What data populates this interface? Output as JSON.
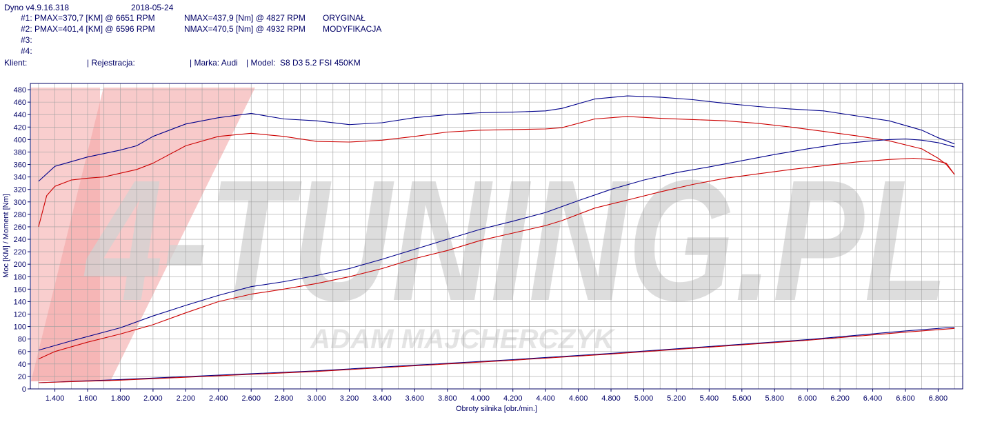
{
  "header": {
    "app": "Dyno v4.9.16.318",
    "date": "2018-05-24",
    "runs": [
      {
        "id": "#1:",
        "pmax": "PMAX=370,7 [KM] @ 6651 RPM",
        "nmax": "NMAX=437,9 [Nm] @ 4827 RPM",
        "label": "ORYGINAŁ"
      },
      {
        "id": "#2:",
        "pmax": "PMAX=401,4 [KM] @ 6596 RPM",
        "nmax": "NMAX=470,5 [Nm] @ 4932 RPM",
        "label": "MODYFIKACJA"
      },
      {
        "id": "#3:",
        "pmax": "",
        "nmax": "",
        "label": ""
      },
      {
        "id": "#4:",
        "pmax": "",
        "nmax": "",
        "label": ""
      }
    ],
    "client_label": "Klient:",
    "registration_label": "| Rejestracja:",
    "make_label": "| Marka: Audi",
    "model_label": "| Model:",
    "model_value": "S8 D3 5.2 FSI 450KM"
  },
  "watermark": {
    "brand": "4-TUNING.PL",
    "sub": "ADAM MAJCHERCZYK",
    "colors": {
      "brand": "#cfcfcf",
      "accent": "#f4a6a6"
    }
  },
  "chart_data": {
    "type": "line",
    "xlabel": "Obroty silnika [obr./min.]",
    "ylabel": "Moc [KM] / Moment [Nm]",
    "xlim": [
      1250,
      6950
    ],
    "ylim": [
      0,
      490
    ],
    "x_ticks": [
      1400,
      1600,
      1800,
      2000,
      2200,
      2400,
      2600,
      2800,
      3000,
      3200,
      3400,
      3600,
      3800,
      4000,
      4200,
      4400,
      4600,
      4800,
      5000,
      5200,
      5400,
      5600,
      5800,
      6000,
      6200,
      6400,
      6600,
      6800
    ],
    "x_tick_labels": [
      "1.400",
      "1.600",
      "1.800",
      "2.000",
      "2.200",
      "2.400",
      "2.600",
      "2.800",
      "3.000",
      "3.200",
      "3.400",
      "3.600",
      "3.800",
      "4.000",
      "4.200",
      "4.400",
      "4.600",
      "4.800",
      "5.000",
      "5.200",
      "5.400",
      "5.600",
      "5.800",
      "6.000",
      "6.200",
      "6.400",
      "6.600",
      "6.800"
    ],
    "y_ticks": [
      0,
      20,
      40,
      60,
      80,
      100,
      120,
      140,
      160,
      180,
      200,
      220,
      240,
      260,
      280,
      300,
      320,
      340,
      360,
      380,
      400,
      420,
      440,
      460,
      480
    ],
    "grid": true,
    "colors": {
      "grid": "#a0a0a0",
      "run1": "#cc0000",
      "run2": "#00008b",
      "axis": "#000066"
    },
    "series": [
      {
        "run": "#2",
        "quantity": "torque",
        "color": "#00008b",
        "x": [
          1300,
          1400,
          1600,
          1800,
          1900,
          2000,
          2200,
          2400,
          2600,
          2800,
          3000,
          3200,
          3400,
          3600,
          3800,
          4000,
          4200,
          4400,
          4500,
          4700,
          4900,
          5100,
          5300,
          5500,
          5700,
          5900,
          6100,
          6300,
          6500,
          6700,
          6800,
          6900
        ],
        "y": [
          333,
          357,
          372,
          383,
          390,
          405,
          425,
          435,
          442,
          433,
          430,
          424,
          427,
          435,
          440,
          443,
          444,
          446,
          450,
          465,
          470,
          468,
          464,
          458,
          453,
          449,
          446,
          438,
          430,
          415,
          403,
          393
        ]
      },
      {
        "run": "#1",
        "quantity": "torque",
        "color": "#cc0000",
        "x": [
          1300,
          1350,
          1400,
          1500,
          1600,
          1700,
          1800,
          1900,
          2000,
          2200,
          2400,
          2600,
          2800,
          3000,
          3200,
          3400,
          3600,
          3800,
          4000,
          4200,
          4400,
          4500,
          4700,
          4900,
          5100,
          5300,
          5500,
          5700,
          5900,
          6100,
          6300,
          6500,
          6700,
          6800,
          6850,
          6900
        ],
        "y": [
          260,
          310,
          325,
          335,
          338,
          340,
          346,
          352,
          362,
          390,
          405,
          410,
          405,
          397,
          396,
          399,
          405,
          412,
          415,
          416,
          417,
          419,
          433,
          437,
          434,
          432,
          430,
          426,
          420,
          413,
          406,
          398,
          385,
          370,
          360,
          344
        ]
      },
      {
        "run": "#2",
        "quantity": "power",
        "color": "#00008b",
        "x": [
          1300,
          1500,
          1800,
          2000,
          2200,
          2400,
          2600,
          2800,
          3000,
          3200,
          3400,
          3600,
          3800,
          4000,
          4200,
          4400,
          4600,
          4800,
          5000,
          5200,
          5400,
          5600,
          5800,
          6000,
          6200,
          6400,
          6500,
          6600,
          6700,
          6800,
          6900
        ],
        "y": [
          62,
          77,
          98,
          117,
          134,
          150,
          164,
          172,
          182,
          193,
          208,
          224,
          240,
          256,
          269,
          283,
          302,
          320,
          335,
          347,
          356,
          366,
          376,
          385,
          393,
          398,
          400,
          401,
          399,
          395,
          388
        ]
      },
      {
        "run": "#1",
        "quantity": "power",
        "color": "#cc0000",
        "x": [
          1300,
          1400,
          1600,
          1800,
          2000,
          2200,
          2400,
          2600,
          2800,
          3000,
          3200,
          3400,
          3600,
          3800,
          4000,
          4200,
          4400,
          4500,
          4700,
          4900,
          5100,
          5300,
          5500,
          5700,
          5900,
          6100,
          6300,
          6500,
          6650,
          6750,
          6850,
          6900
        ],
        "y": [
          48,
          60,
          75,
          88,
          103,
          122,
          140,
          152,
          160,
          169,
          180,
          193,
          209,
          222,
          238,
          250,
          262,
          270,
          290,
          303,
          316,
          328,
          338,
          345,
          352,
          358,
          364,
          368,
          370,
          368,
          362,
          344
        ]
      },
      {
        "run": "#2",
        "quantity": "losses",
        "color": "#00008b",
        "x": [
          1300,
          1800,
          2400,
          3000,
          3600,
          4200,
          4800,
          5400,
          6000,
          6600,
          6900
        ],
        "y": [
          10,
          15,
          22,
          29,
          38,
          47,
          57,
          68,
          79,
          93,
          99
        ]
      },
      {
        "run": "#1",
        "quantity": "losses",
        "color": "#cc0000",
        "x": [
          1300,
          1800,
          2400,
          3000,
          3600,
          4200,
          4800,
          5400,
          6000,
          6600,
          6900
        ],
        "y": [
          10,
          14,
          21,
          28,
          37,
          46,
          56,
          67,
          78,
          91,
          97
        ]
      }
    ]
  }
}
